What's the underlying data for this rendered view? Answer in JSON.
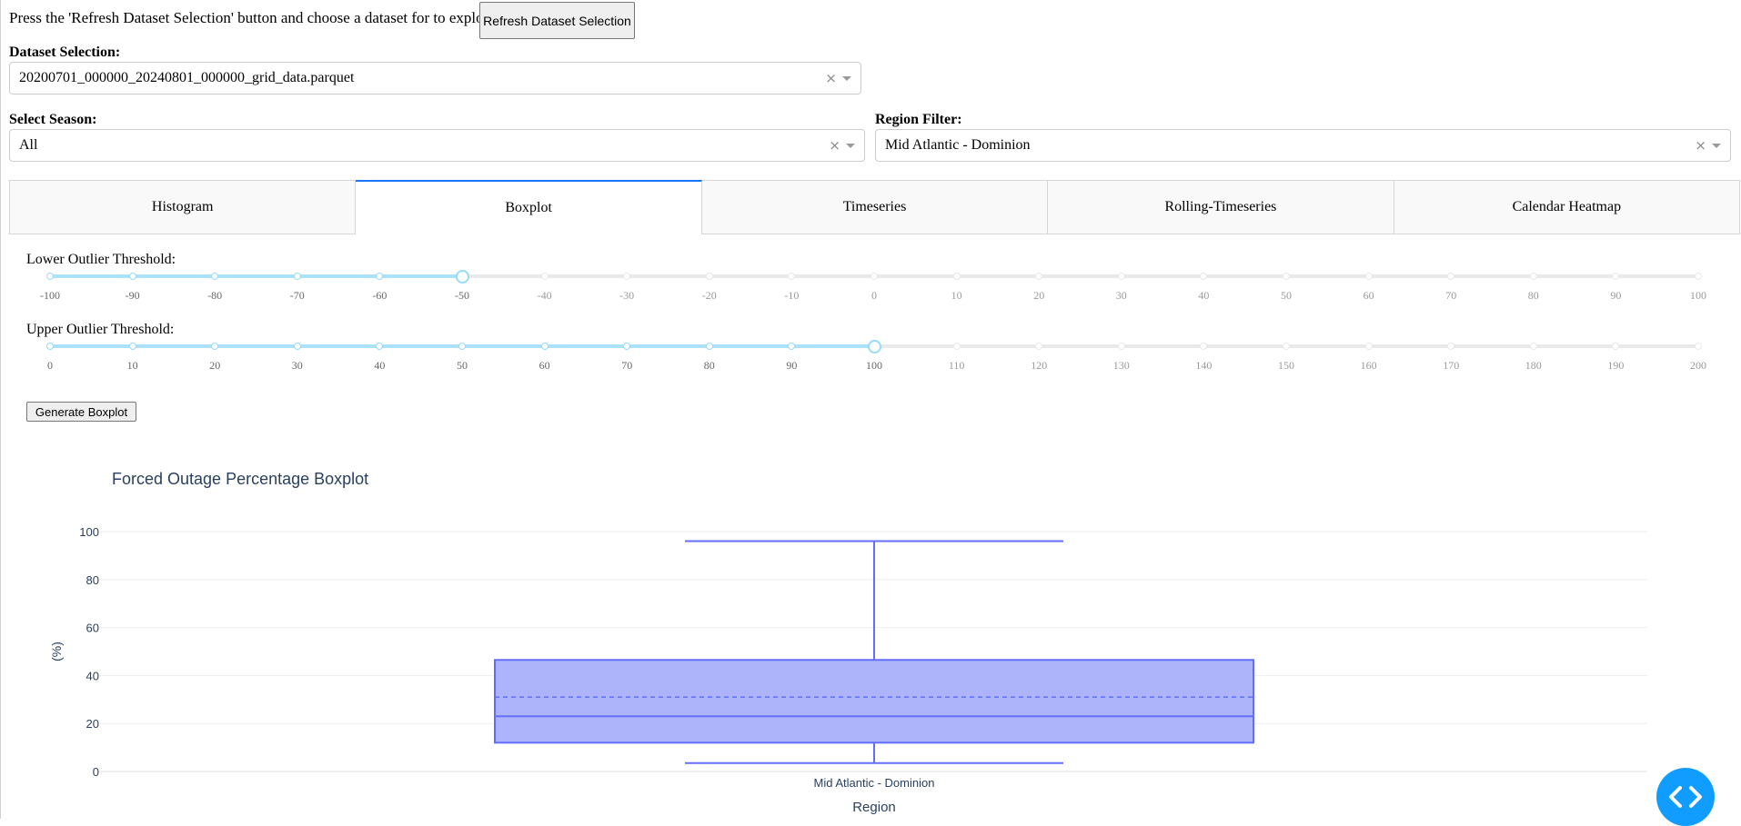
{
  "intro_text": "Press the 'Refresh Dataset Selection' button and choose a dataset for to explore.",
  "refresh_button": "Refresh Dataset Selection",
  "dataset": {
    "label": "Dataset Selection:",
    "value": "20200701_000000_20240801_000000_grid_data.parquet"
  },
  "season": {
    "label": "Select Season:",
    "value": "All"
  },
  "region": {
    "label": "Region Filter:",
    "value": "Mid Atlantic - Dominion"
  },
  "tabs": [
    {
      "label": "Histogram",
      "active": false
    },
    {
      "label": "Boxplot",
      "active": true
    },
    {
      "label": "Timeseries",
      "active": false
    },
    {
      "label": "Rolling-Timeseries",
      "active": false
    },
    {
      "label": "Calendar Heatmap",
      "active": false
    }
  ],
  "lower_slider": {
    "label": "Lower Outlier Threshold:",
    "min": -100,
    "max": 100,
    "value": -50,
    "marks": [
      "-100",
      "-90",
      "-80",
      "-70",
      "-60",
      "-50",
      "-40",
      "-30",
      "-20",
      "-10",
      "0",
      "10",
      "20",
      "30",
      "40",
      "50",
      "60",
      "70",
      "80",
      "90",
      "100"
    ]
  },
  "upper_slider": {
    "label": "Upper Outlier Threshold:",
    "min": 0,
    "max": 200,
    "value": 100,
    "marks": [
      "0",
      "10",
      "20",
      "30",
      "40",
      "50",
      "60",
      "70",
      "80",
      "90",
      "100",
      "110",
      "120",
      "130",
      "140",
      "150",
      "160",
      "170",
      "180",
      "190",
      "200"
    ]
  },
  "generate_button": "Generate Boxplot",
  "chart_data": {
    "type": "box",
    "title": "Forced Outage Percentage Boxplot",
    "xlabel": "Region",
    "ylabel": "(%)",
    "ylim": [
      0,
      100
    ],
    "yticks": [
      "0",
      "20",
      "40",
      "60",
      "80",
      "100"
    ],
    "categories": [
      "Mid Atlantic - Dominion"
    ],
    "box": {
      "min": 3.5,
      "q1": 12,
      "median": 23,
      "mean": 31,
      "q3": 46.5,
      "max": 96
    },
    "colors": {
      "line": "#636efa",
      "fill": "#aab0fa"
    }
  },
  "colors": {
    "accent": "#1975FA",
    "slider_track": "#abe2fb",
    "fab": "#119DFF"
  }
}
